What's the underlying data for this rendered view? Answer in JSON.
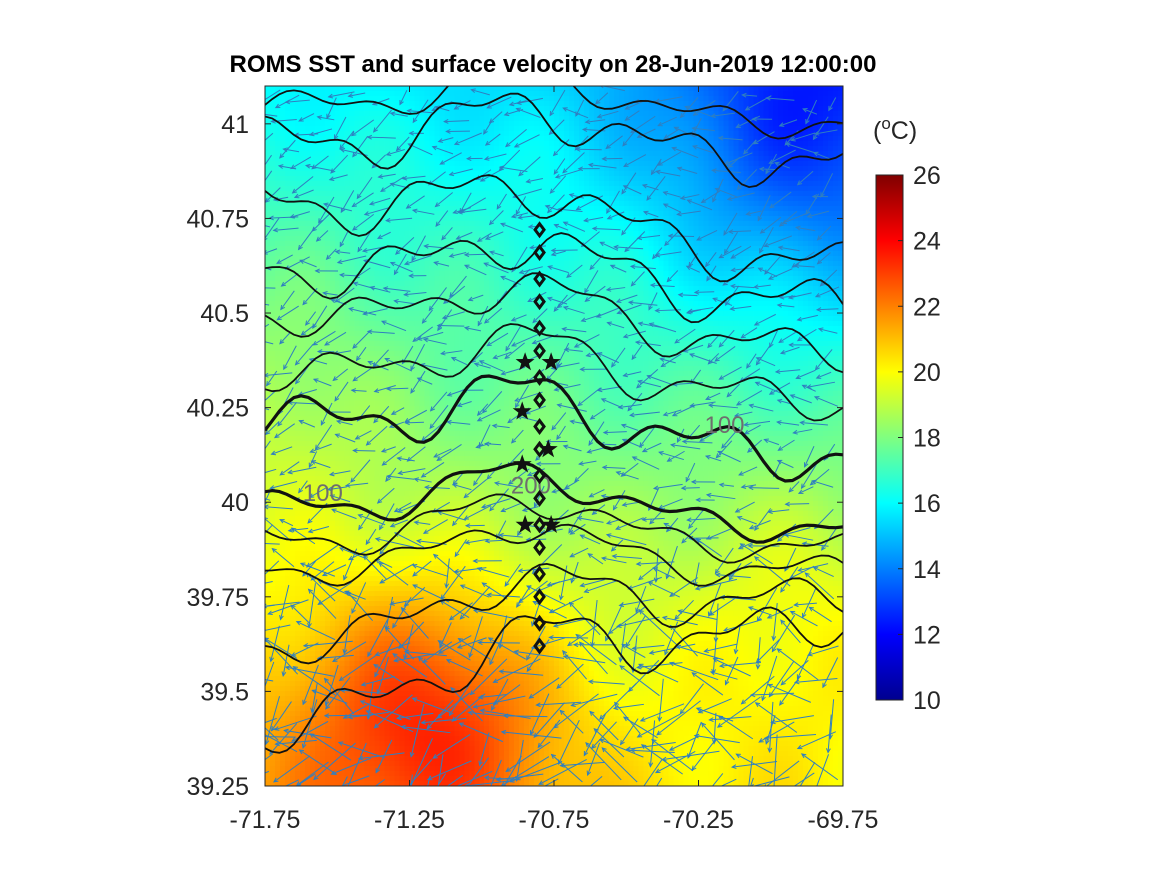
{
  "chart_data": {
    "type": "heatmap",
    "title": "ROMS SST and surface velocity on 28-Jun-2019 12:00:00",
    "xlabel": "",
    "ylabel": "",
    "xlim": [
      -71.75,
      -69.75
    ],
    "ylim": [
      39.25,
      41.1
    ],
    "x_ticks": [
      -71.75,
      -71.25,
      -70.75,
      -70.25,
      -69.75
    ],
    "x_tick_labels": [
      "-71.75",
      "-71.25",
      "-70.75",
      "-70.25",
      "-69.75"
    ],
    "y_ticks": [
      39.25,
      39.5,
      39.75,
      40,
      40.25,
      40.5,
      40.75,
      41
    ],
    "y_tick_labels": [
      "39.25",
      "39.5",
      "39.75",
      "40",
      "40.25",
      "40.5",
      "40.75",
      "41"
    ],
    "colorbar": {
      "label": "(°C)",
      "label_super": "o",
      "label_parts": [
        "(",
        "o",
        "C)"
      ],
      "colormap": "jet",
      "clim": [
        10,
        26
      ],
      "ticks": [
        10,
        12,
        14,
        16,
        18,
        20,
        22,
        24,
        26
      ],
      "tick_labels": [
        "10",
        "12",
        "14",
        "16",
        "18",
        "20",
        "22",
        "24",
        "26"
      ]
    },
    "contour_labels": [
      {
        "text": "100",
        "x": -71.55,
        "y": 40.02
      },
      {
        "text": "200",
        "x": -70.83,
        "y": 40.04
      },
      {
        "text": "100",
        "x": -70.16,
        "y": 40.2
      }
    ],
    "transect_diamonds": [
      {
        "x": -70.8,
        "y": 40.72
      },
      {
        "x": -70.8,
        "y": 40.66
      },
      {
        "x": -70.8,
        "y": 40.59
      },
      {
        "x": -70.8,
        "y": 40.53
      },
      {
        "x": -70.8,
        "y": 40.46
      },
      {
        "x": -70.8,
        "y": 40.4
      },
      {
        "x": -70.8,
        "y": 40.33
      },
      {
        "x": -70.8,
        "y": 40.27
      },
      {
        "x": -70.8,
        "y": 40.2
      },
      {
        "x": -70.8,
        "y": 40.14
      },
      {
        "x": -70.8,
        "y": 40.07
      },
      {
        "x": -70.8,
        "y": 40.01
      },
      {
        "x": -70.8,
        "y": 39.94
      },
      {
        "x": -70.8,
        "y": 39.88
      },
      {
        "x": -70.8,
        "y": 39.81
      },
      {
        "x": -70.8,
        "y": 39.75
      },
      {
        "x": -70.8,
        "y": 39.68
      },
      {
        "x": -70.8,
        "y": 39.62
      }
    ],
    "stars": [
      {
        "x": -70.85,
        "y": 40.37
      },
      {
        "x": -70.76,
        "y": 40.37
      },
      {
        "x": -70.86,
        "y": 40.24
      },
      {
        "x": -70.77,
        "y": 40.14
      },
      {
        "x": -70.86,
        "y": 40.1
      },
      {
        "x": -70.85,
        "y": 39.94
      },
      {
        "x": -70.76,
        "y": 39.94
      }
    ],
    "sst_field_description_values": {
      "northeast_min_c": 13.5,
      "southwest_max_c": 23.5,
      "mid_shelf_c": 18.5
    }
  }
}
